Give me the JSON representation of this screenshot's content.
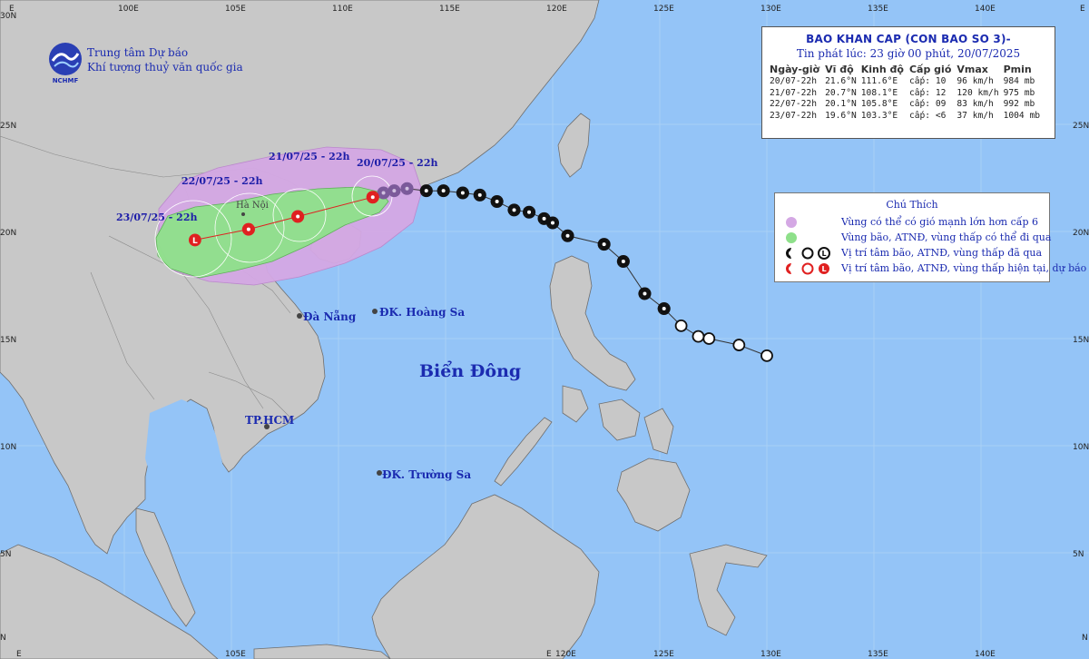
{
  "bulletin": {
    "title": "BAO KHAN CAP (CON BAO SO 3)-",
    "issued": "Tin phát lúc: 23 giờ 00 phút, 20/07/2025",
    "headers": [
      "Ngày-giờ",
      "Vĩ độ",
      "Kinh độ",
      "Cấp gió",
      "Vmax",
      "Pmin"
    ],
    "rows": [
      [
        "20/07-22h",
        "21.6°N",
        "111.6°E",
        "cấp: 10",
        "96 km/h",
        "984 mb"
      ],
      [
        "21/07-22h",
        "20.7°N",
        "108.1°E",
        "cấp: 12",
        "120 km/h",
        "975 mb"
      ],
      [
        "22/07-22h",
        "20.1°N",
        "105.8°E",
        "cấp: 09",
        "83 km/h",
        "992 mb"
      ],
      [
        "23/07-22h",
        "19.6°N",
        "103.3°E",
        "cấp: <6",
        "37 km/h",
        "1004 mb"
      ]
    ]
  },
  "organization": {
    "line1": "Trung tâm Dự báo",
    "line2": "Khí tượng thuỷ văn quốc gia",
    "logo_text": "NCHMF"
  },
  "legend": {
    "title": "Chú Thích",
    "items": [
      {
        "text": "Vùng có thể có gió mạnh lớn hơn cấp 6",
        "color": "#d4a8e4"
      },
      {
        "text": "Vùng bão, ATNĐ, vùng thấp có thể đi qua",
        "color": "#8ee08a"
      },
      {
        "text": "Vị trí tâm bão, ATNĐ, vùng thấp đã qua",
        "color": "#111111"
      },
      {
        "text": "Vị trí tâm bão, ATNĐ, vùng thấp hiện tại, dự báo",
        "color": "#e02020"
      }
    ]
  },
  "places": {
    "sea": "Biển Đông",
    "da_nang": "Đà Nẵng",
    "hoang_sa": "ĐK. Hoàng Sa",
    "hcm": "TP.HCM",
    "truong_sa": "ĐK. Trường Sa",
    "ha_noi": "Hà Nội"
  },
  "forecast_times": [
    "20/07/25 - 22h",
    "21/07/25 - 22h",
    "22/07/25 - 22h",
    "23/07/25 - 22h"
  ],
  "axes": {
    "top": [
      "100E",
      "105E",
      "110E",
      "115E",
      "120E",
      "125E",
      "130E",
      "135E",
      "140E"
    ],
    "bottom": [
      "105E",
      "120E",
      "125E",
      "130E",
      "135E",
      "140E"
    ],
    "left": [
      "25N",
      "20N",
      "15N",
      "10N",
      "5N"
    ],
    "right": [
      "25N",
      "20N",
      "15N",
      "10N",
      "5N"
    ],
    "corner_top_left": "E",
    "corner_top_right": "E",
    "corner_left": "30N",
    "corner_bottom_left": "E",
    "edge_left": "N",
    "edge_right": "N",
    "bottom_partial": "E"
  },
  "colors": {
    "sea": "#94c4f7",
    "land": "#c8c8c8",
    "wind_zone": "#d4a8e4",
    "storm_zone": "#8ee08a",
    "storm_center": "#e02020",
    "past_track": "#111111"
  },
  "track": {
    "past": [
      {
        "lon": 130.0,
        "lat": 14.2,
        "kind": "L"
      },
      {
        "lon": 128.7,
        "lat": 14.7,
        "kind": "L"
      },
      {
        "lon": 127.3,
        "lat": 15.0,
        "kind": "L"
      },
      {
        "lon": 126.8,
        "lat": 15.1,
        "kind": "L"
      },
      {
        "lon": 126.0,
        "lat": 15.6,
        "kind": "L"
      },
      {
        "lon": 125.2,
        "lat": 16.4,
        "kind": "S"
      },
      {
        "lon": 124.3,
        "lat": 17.1,
        "kind": "S"
      },
      {
        "lon": 123.3,
        "lat": 18.6,
        "kind": "S"
      },
      {
        "lon": 122.4,
        "lat": 19.4,
        "kind": "S"
      },
      {
        "lon": 120.7,
        "lat": 19.8,
        "kind": "S"
      },
      {
        "lon": 120.0,
        "lat": 20.4,
        "kind": "S"
      },
      {
        "lon": 119.6,
        "lat": 20.6,
        "kind": "S"
      },
      {
        "lon": 118.9,
        "lat": 20.9,
        "kind": "S"
      },
      {
        "lon": 118.2,
        "lat": 21.0,
        "kind": "S"
      },
      {
        "lon": 117.4,
        "lat": 21.4,
        "kind": "S"
      },
      {
        "lon": 116.6,
        "lat": 21.7,
        "kind": "S"
      },
      {
        "lon": 115.8,
        "lat": 21.8,
        "kind": "S"
      },
      {
        "lon": 114.9,
        "lat": 21.9,
        "kind": "S"
      },
      {
        "lon": 114.1,
        "lat": 21.9,
        "kind": "S"
      },
      {
        "lon": 113.2,
        "lat": 22.0,
        "kind": "S"
      },
      {
        "lon": 112.6,
        "lat": 21.9,
        "kind": "S"
      },
      {
        "lon": 112.1,
        "lat": 21.8,
        "kind": "S"
      }
    ],
    "forecast": [
      {
        "lon": 111.6,
        "lat": 21.6,
        "kind": "S"
      },
      {
        "lon": 108.1,
        "lat": 20.7,
        "kind": "S"
      },
      {
        "lon": 105.8,
        "lat": 20.1,
        "kind": "S"
      },
      {
        "lon": 103.3,
        "lat": 19.6,
        "kind": "L"
      }
    ]
  }
}
